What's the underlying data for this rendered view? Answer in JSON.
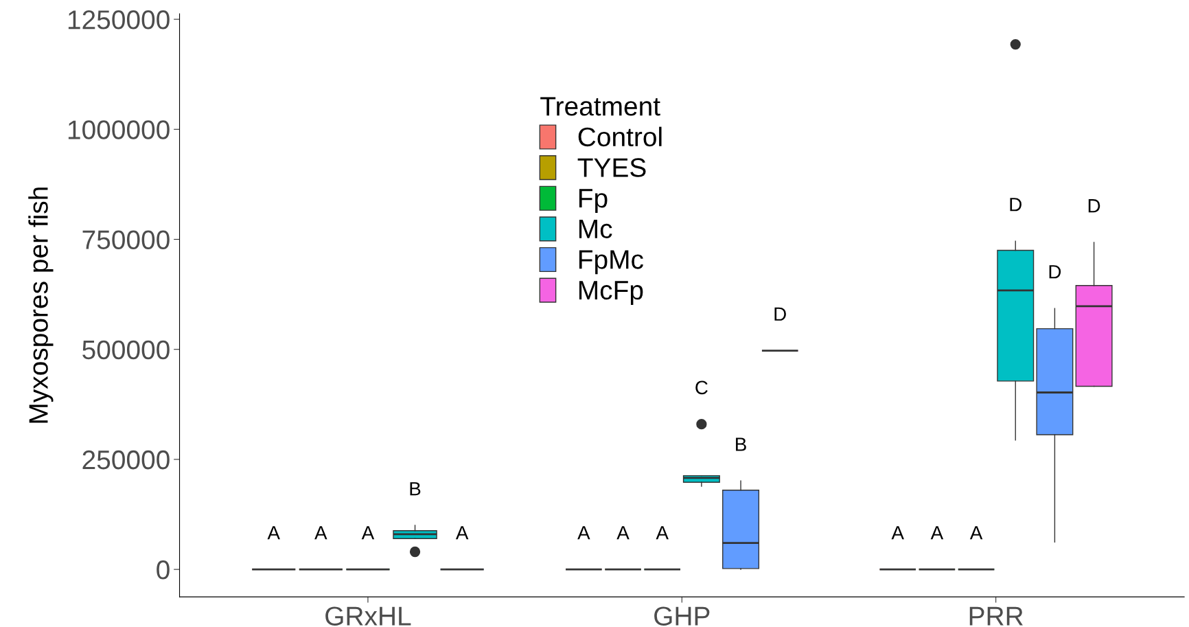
{
  "chart_data": {
    "type": "box",
    "ylabel": "Myxospores per fish",
    "legend_title": "Treatment",
    "legend": "top",
    "categories": [
      "GRxHL",
      "GHP",
      "PRR"
    ],
    "ylim": [
      -62500,
      1262500
    ],
    "yticks": [
      0,
      250000,
      500000,
      750000,
      1000000,
      1250000
    ],
    "grid": false,
    "series": [
      {
        "name": "Control",
        "color": "#f8766d",
        "boxes": [
          {
            "low": 0,
            "q1": 0,
            "median": 0,
            "q3": 0,
            "high": 0
          },
          {
            "low": 0,
            "q1": 0,
            "median": 0,
            "q3": 0,
            "high": 0
          },
          {
            "low": 0,
            "q1": 0,
            "median": 0,
            "q3": 0,
            "high": 0
          }
        ]
      },
      {
        "name": "TYES",
        "color": "#b79f00",
        "boxes": [
          {
            "low": 0,
            "q1": 0,
            "median": 0,
            "q3": 0,
            "high": 0
          },
          {
            "low": 0,
            "q1": 0,
            "median": 0,
            "q3": 0,
            "high": 0
          },
          {
            "low": 0,
            "q1": 0,
            "median": 0,
            "q3": 0,
            "high": 0
          }
        ]
      },
      {
        "name": "Fp",
        "color": "#00ba38",
        "boxes": [
          {
            "low": 0,
            "q1": 0,
            "median": 0,
            "q3": 0,
            "high": 0
          },
          {
            "low": 0,
            "q1": 0,
            "median": 0,
            "q3": 0,
            "high": 0
          },
          {
            "low": 0,
            "q1": 0,
            "median": 0,
            "q3": 0,
            "high": 0
          }
        ]
      },
      {
        "name": "Mc",
        "color": "#00bfc4",
        "boxes": [
          {
            "low": 70000,
            "q1": 70000,
            "median": 80000,
            "q3": 88000,
            "high": 100000,
            "outliers": [
              40000
            ]
          },
          {
            "low": 189000,
            "q1": 198000,
            "median": 208000,
            "q3": 213000,
            "high": 213000,
            "outliers": [
              330000
            ]
          },
          {
            "low": 294000,
            "q1": 428000,
            "median": 634000,
            "q3": 725000,
            "high": 746000,
            "outliers": [
              1193000
            ]
          }
        ]
      },
      {
        "name": "FpMc",
        "color": "#619cff",
        "boxes": [
          {
            "low": 0,
            "q1": 0,
            "median": 0,
            "q3": 0,
            "high": 0
          },
          {
            "low": 0,
            "q1": 2000,
            "median": 60000,
            "q3": 180000,
            "high": 201000
          },
          {
            "low": 62000,
            "q1": 306000,
            "median": 402000,
            "q3": 547000,
            "high": 593000
          }
        ]
      },
      {
        "name": "McFp",
        "color": "#f564e3",
        "boxes": [
          null,
          {
            "low": 497000,
            "q1": 497000,
            "median": 497000,
            "q3": 497000,
            "high": 497000
          },
          {
            "low": 416000,
            "q1": 416000,
            "median": 598000,
            "q3": 645000,
            "high": 743000
          }
        ]
      }
    ],
    "annotations": [
      "A",
      "A",
      "A",
      "B",
      "A",
      "A",
      "A",
      "A",
      "C",
      "B",
      "D",
      "A",
      "A",
      "A",
      "D",
      "D",
      "D"
    ]
  }
}
